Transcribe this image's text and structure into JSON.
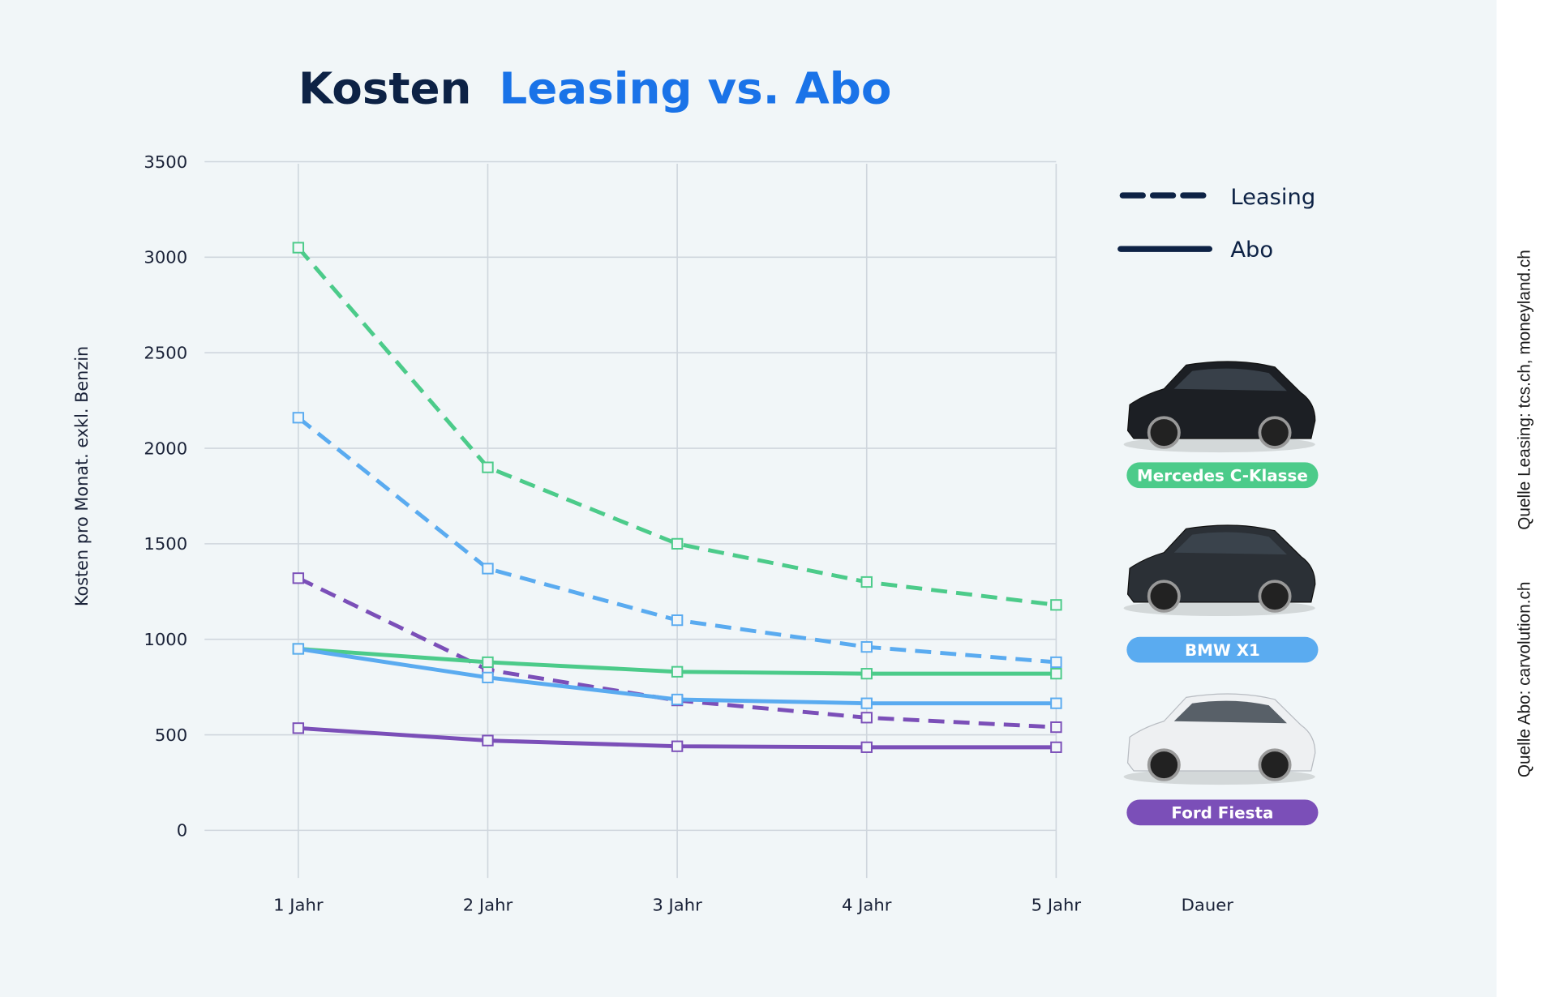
{
  "chart_data": {
    "type": "line",
    "title_parts": [
      "Kosten",
      "Leasing vs. Abo"
    ],
    "ylabel": "Kosten pro Monat. exkl. Benzin",
    "xlabel": "Dauer",
    "categories": [
      "1 Jahr",
      "2 Jahr",
      "3 Jahr",
      "4 Jahr",
      "5 Jahr"
    ],
    "yticks": [
      "0",
      "500",
      "1000",
      "1500",
      "2000",
      "2500",
      "3000",
      "3500"
    ],
    "ylim": [
      0,
      3500
    ],
    "grid": true,
    "legend": {
      "placement": "right",
      "entries": [
        {
          "label": "Leasing",
          "style": "dashed"
        },
        {
          "label": "Abo",
          "style": "solid"
        }
      ]
    },
    "cars": [
      {
        "label": "Mercedes C-Klasse",
        "color": "#4ccb8a"
      },
      {
        "label": "BMW X1",
        "color": "#5aabf0"
      },
      {
        "label": "Ford Fiesta",
        "color": "#7b4fb8"
      }
    ],
    "series": [
      {
        "car": "Mercedes C-Klasse",
        "type": "Leasing",
        "color": "#4ccb8a",
        "dashed": true,
        "values": [
          3050,
          1900,
          1500,
          1300,
          1180
        ]
      },
      {
        "car": "BMW X1",
        "type": "Leasing",
        "color": "#5aabf0",
        "dashed": true,
        "values": [
          2160,
          1370,
          1100,
          960,
          880
        ]
      },
      {
        "car": "Ford Fiesta",
        "type": "Leasing",
        "color": "#7b4fb8",
        "dashed": true,
        "values": [
          1320,
          840,
          680,
          590,
          540
        ]
      },
      {
        "car": "Mercedes C-Klasse",
        "type": "Abo",
        "color": "#4ccb8a",
        "dashed": false,
        "values": [
          950,
          880,
          830,
          820,
          820
        ]
      },
      {
        "car": "BMW X1",
        "type": "Abo",
        "color": "#5aabf0",
        "dashed": false,
        "values": [
          950,
          800,
          685,
          665,
          665
        ]
      },
      {
        "car": "Ford Fiesta",
        "type": "Abo",
        "color": "#7b4fb8",
        "dashed": false,
        "values": [
          535,
          470,
          440,
          435,
          435
        ]
      }
    ]
  },
  "sources": {
    "leasing": "Quelle Leasing: tcs.ch, moneyland.ch",
    "abo": "Quelle Abo: carvolution.ch"
  },
  "colors": {
    "title_dark": "#0d2245",
    "title_accent": "#1a73e8",
    "background": "#f1f6f8",
    "grid": "#cfd6dd"
  }
}
